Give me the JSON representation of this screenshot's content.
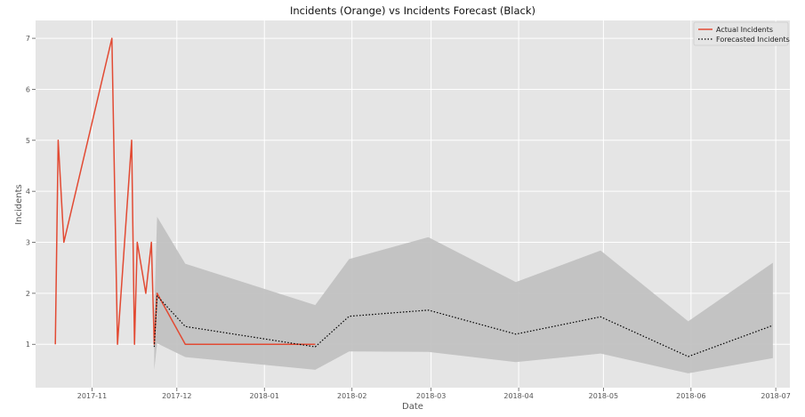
{
  "chart_data": {
    "type": "line",
    "title": "Incidents (Orange) vs Incidents Forecast (Black)",
    "xlabel": "Date",
    "ylabel": "Incidents",
    "xlim": [
      "2017-10-12",
      "2018-07-06"
    ],
    "ylim": [
      0.15,
      7.35
    ],
    "x_ticks": [
      "2017-11",
      "2017-12",
      "2018-01",
      "2018-02",
      "2018-03",
      "2018-04",
      "2018-05",
      "2018-06",
      "2018-07"
    ],
    "y_ticks": [
      1,
      2,
      3,
      4,
      5,
      6,
      7
    ],
    "grid": true,
    "legend": "top-right",
    "colors": {
      "background": "#e5e5e5",
      "grid": "#ffffff",
      "actual": "#e24a33",
      "forecast": "#000000",
      "band": "#bfbfbf"
    },
    "series": [
      {
        "name": "Actual Incidents",
        "style": "solid",
        "points": [
          {
            "x": "2017-10-19",
            "y": 1
          },
          {
            "x": "2017-10-20",
            "y": 5
          },
          {
            "x": "2017-10-22",
            "y": 3
          },
          {
            "x": "2017-11-08",
            "y": 7
          },
          {
            "x": "2017-11-10",
            "y": 1
          },
          {
            "x": "2017-11-15",
            "y": 5
          },
          {
            "x": "2017-11-16",
            "y": 1
          },
          {
            "x": "2017-11-17",
            "y": 3
          },
          {
            "x": "2017-11-20",
            "y": 2
          },
          {
            "x": "2017-11-22",
            "y": 3
          },
          {
            "x": "2017-11-23",
            "y": 1
          },
          {
            "x": "2017-11-24",
            "y": 2
          },
          {
            "x": "2017-12-04",
            "y": 1
          },
          {
            "x": "2018-01-19",
            "y": 1
          }
        ]
      },
      {
        "name": "Forecasted Incidents",
        "style": "dotted",
        "points": [
          {
            "x": "2017-11-23",
            "y": 0.95
          },
          {
            "x": "2017-11-24",
            "y": 1.95
          },
          {
            "x": "2017-12-04",
            "y": 1.35
          },
          {
            "x": "2018-01-19",
            "y": 0.95
          },
          {
            "x": "2018-01-31",
            "y": 1.55
          },
          {
            "x": "2018-02-28",
            "y": 1.67
          },
          {
            "x": "2018-03-31",
            "y": 1.2
          },
          {
            "x": "2018-04-30",
            "y": 1.54
          },
          {
            "x": "2018-05-31",
            "y": 0.76
          },
          {
            "x": "2018-06-30",
            "y": 1.37
          }
        ]
      }
    ],
    "confidence_band": {
      "upper": [
        {
          "x": "2017-11-23",
          "y": 1.6
        },
        {
          "x": "2017-11-24",
          "y": 3.5
        },
        {
          "x": "2017-12-04",
          "y": 2.58
        },
        {
          "x": "2018-01-19",
          "y": 1.77
        },
        {
          "x": "2018-01-31",
          "y": 2.67
        },
        {
          "x": "2018-02-28",
          "y": 3.1
        },
        {
          "x": "2018-03-31",
          "y": 2.22
        },
        {
          "x": "2018-04-30",
          "y": 2.84
        },
        {
          "x": "2018-05-31",
          "y": 1.45
        },
        {
          "x": "2018-06-30",
          "y": 2.6
        }
      ],
      "lower": [
        {
          "x": "2017-11-23",
          "y": 0.5
        },
        {
          "x": "2017-11-24",
          "y": 1.02
        },
        {
          "x": "2017-12-04",
          "y": 0.75
        },
        {
          "x": "2018-01-19",
          "y": 0.5
        },
        {
          "x": "2018-01-31",
          "y": 0.86
        },
        {
          "x": "2018-02-28",
          "y": 0.85
        },
        {
          "x": "2018-03-31",
          "y": 0.65
        },
        {
          "x": "2018-04-30",
          "y": 0.82
        },
        {
          "x": "2018-05-31",
          "y": 0.43
        },
        {
          "x": "2018-06-30",
          "y": 0.73
        }
      ]
    }
  }
}
